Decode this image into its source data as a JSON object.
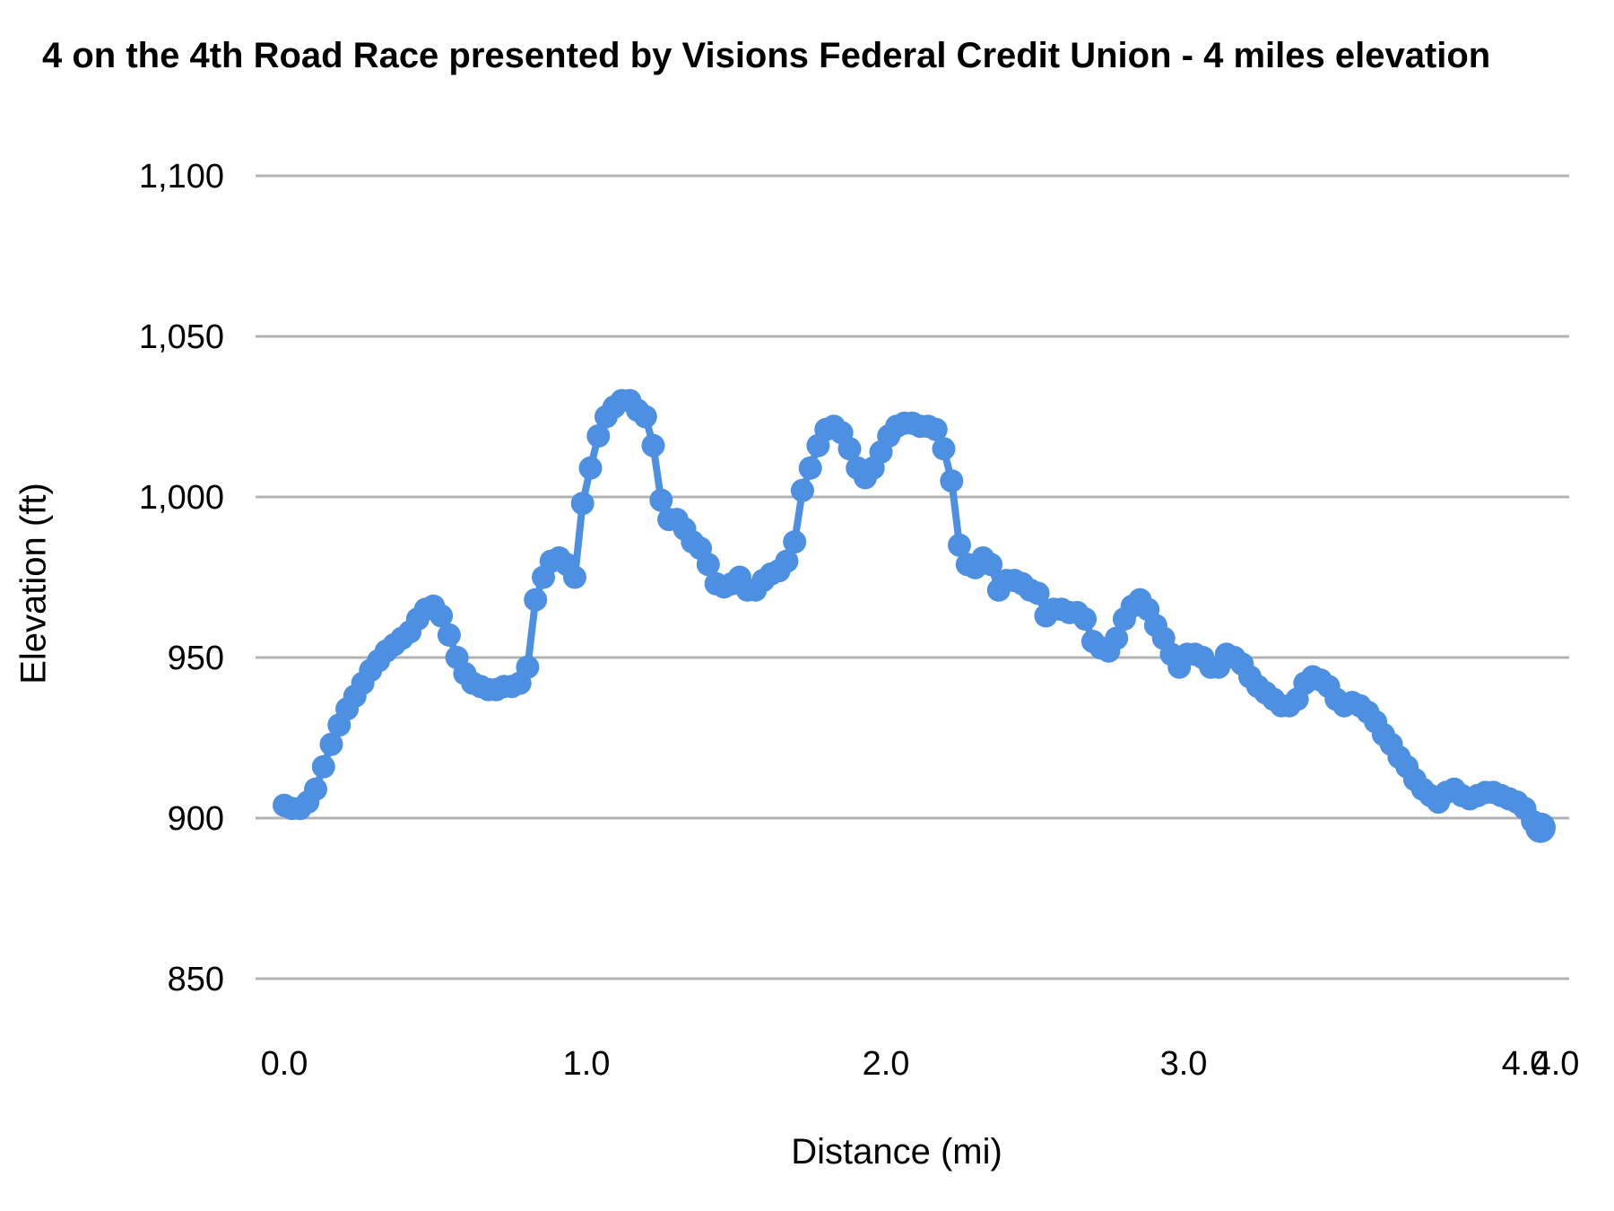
{
  "chart": {
    "title": "4 on the 4th Road Race presented by Visions Federal Credit Union - 4 miles elevation",
    "ylabel": "Elevation (ft)",
    "xlabel": "Distance (mi)"
  },
  "chart_data": {
    "type": "line",
    "title": "4 on the 4th Road Race presented by Visions Federal Credit Union - 4 miles elevation",
    "xlabel": "Distance (mi)",
    "ylabel": "Elevation (ft)",
    "legend": "none",
    "grid": true,
    "marker": "circle",
    "series_color": "#4d90e2",
    "gridline_color": "#b3b3b3",
    "xlim": [
      0.0,
      4.0
    ],
    "ylim": [
      850,
      1100
    ],
    "x_start": 0.0,
    "x_step": 0.025,
    "x_end": 4.0,
    "x_tick_labels": [
      "0.0",
      "1.0",
      "2.0",
      "3.0",
      "4.0",
      "4.0"
    ],
    "x_end_label_overlaps": true,
    "y_ticks": [
      {
        "value": 850,
        "label": "850"
      },
      {
        "value": 900,
        "label": "900"
      },
      {
        "value": 950,
        "label": "950"
      },
      {
        "value": 1000,
        "label": "1,000"
      },
      {
        "value": 1050,
        "label": "1,050"
      },
      {
        "value": 1100,
        "label": "1,100"
      }
    ],
    "elevations_ft": [
      904,
      903,
      903,
      905,
      909,
      916,
      923,
      929,
      934,
      938,
      942,
      946,
      949,
      952,
      954,
      956,
      958,
      962,
      965,
      966,
      963,
      957,
      950,
      945,
      942,
      941,
      940,
      940,
      941,
      941,
      942,
      947,
      968,
      975,
      980,
      981,
      979,
      975,
      998,
      1009,
      1019,
      1025,
      1028,
      1030,
      1030,
      1027,
      1025,
      1016,
      999,
      993,
      993,
      990,
      986,
      984,
      979,
      973,
      972,
      973,
      975,
      971,
      971,
      974,
      976,
      977,
      980,
      986,
      1002,
      1009,
      1016,
      1021,
      1022,
      1020,
      1015,
      1009,
      1006,
      1009,
      1014,
      1019,
      1022,
      1023,
      1023,
      1022,
      1022,
      1021,
      1015,
      1005,
      985,
      979,
      978,
      981,
      979,
      971,
      974,
      974,
      973,
      971,
      970,
      963,
      965,
      965,
      964,
      964,
      962,
      955,
      953,
      952,
      956,
      962,
      966,
      968,
      965,
      960,
      956,
      951,
      947,
      951,
      951,
      950,
      947,
      947,
      951,
      950,
      948,
      944,
      941,
      939,
      937,
      935,
      935,
      937,
      942,
      944,
      943,
      941,
      937,
      935,
      936,
      935,
      933,
      930,
      926,
      923,
      919,
      916,
      912,
      909,
      907,
      905,
      908,
      909,
      907,
      906,
      907,
      908,
      908,
      907,
      906,
      905,
      903,
      899,
      897
    ]
  }
}
